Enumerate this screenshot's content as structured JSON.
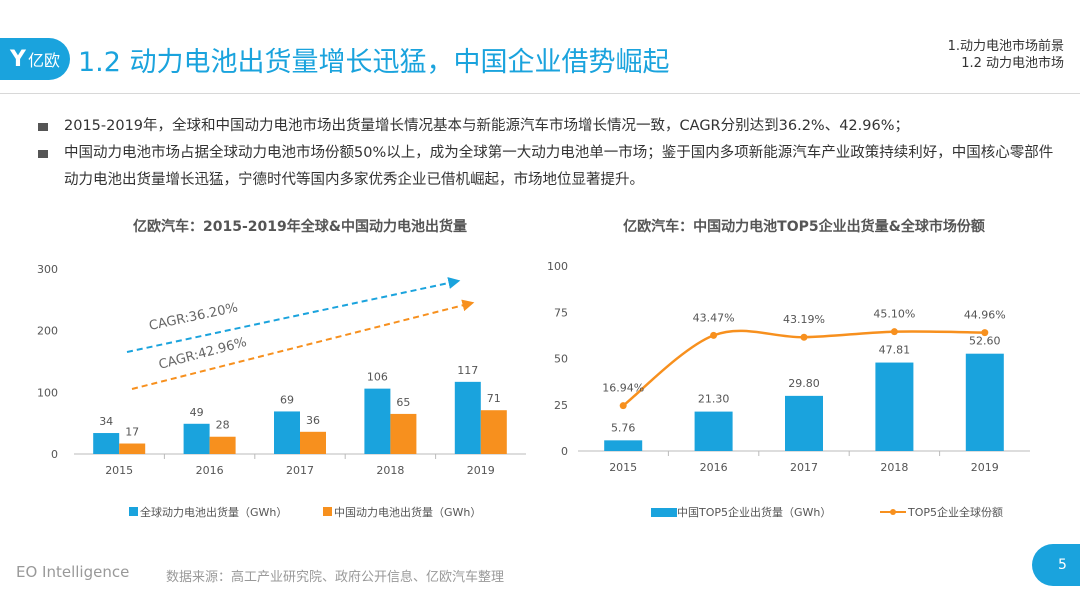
{
  "header": {
    "logo_mark": "Y",
    "logo_text": "亿欧",
    "title": "1.2 动力电池出货量增长迅猛，中国企业借势崛起",
    "breadcrumb": [
      "1.动力电池市场前景",
      "1.2 动力电池市场"
    ]
  },
  "bullets": [
    "2015-2019年，全球和中国动力电池市场出货量增长情况基本与新能源汽车市场增长情况一致，CAGR分别达到36.2%、42.96%；",
    "中国动力电池市场占据全球动力电池市场份额50%以上，成为全球第一大动力电池单一市场；鉴于国内多项新能源汽车产业政策持续利好，中国核心零部件动力电池出货量增长迅猛，宁德时代等国内多家优秀企业已借机崛起，市场地位显著提升。"
  ],
  "colors": {
    "blue": "#1aa3dd",
    "orange": "#f7901e",
    "axis": "#bbbbbb",
    "text": "#555555"
  },
  "chart_data": [
    {
      "type": "bar",
      "title": "亿欧汽车：2015-2019年全球&中国动力电池出货量",
      "categories": [
        "2015",
        "2016",
        "2017",
        "2018",
        "2019"
      ],
      "series": [
        {
          "name": "全球动力电池出货量（GWh）",
          "values": [
            34,
            49,
            69,
            106,
            117
          ],
          "labels": [
            "34",
            "49",
            "69",
            "106",
            "117"
          ]
        },
        {
          "name": "中国动力电池出货量（GWh）",
          "values": [
            17,
            28,
            36,
            65,
            71
          ],
          "labels": [
            "17",
            "28",
            "36",
            "65",
            "71"
          ]
        }
      ],
      "ylim": [
        0,
        300
      ],
      "yticks": [
        "0",
        "100",
        "200",
        "300"
      ],
      "annotations": [
        "CAGR:36.20%",
        "CAGR:42.96%"
      ],
      "legend": "bottom"
    },
    {
      "type": "bar+line",
      "title": "亿欧汽车：中国动力电池TOP5企业出货量&全球市场份额",
      "categories": [
        "2015",
        "2016",
        "2017",
        "2018",
        "2019"
      ],
      "bar_series": {
        "name": "中国TOP5企业出货量（GWh）",
        "values": [
          5.76,
          21.3,
          29.8,
          47.81,
          52.6
        ],
        "labels": [
          "5.76",
          "21.30",
          "29.80",
          "47.81",
          "52.60"
        ]
      },
      "line_series": {
        "name": "TOP5企业全球份额",
        "values": [
          16.94,
          43.47,
          43.19,
          45.1,
          44.96
        ],
        "labels": [
          "16.94%",
          "43.47%",
          "43.19%",
          "45.10%",
          "44.96%"
        ],
        "plot_values": [
          24.5,
          62.5,
          61.5,
          64.5,
          64.0
        ]
      },
      "ylim": [
        0,
        100
      ],
      "yticks": [
        "0",
        "25",
        "50",
        "75",
        "100"
      ],
      "legend": "bottom"
    }
  ],
  "footer": {
    "brand": "EO Intelligence",
    "source": "数据来源：高工产业研究院、政府公开信息、亿欧汽车整理",
    "page": "5"
  }
}
